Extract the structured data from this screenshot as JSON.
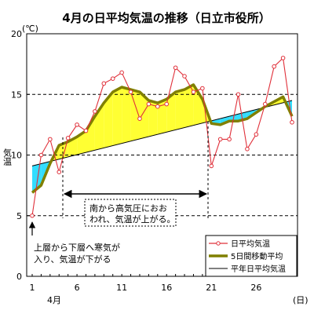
{
  "chart_data": {
    "type": "line",
    "title": "4月の日平均気温の推移（日立市役所）",
    "unit": "(℃)",
    "ylabel": "気温",
    "xlabel": "(日)",
    "month_label": "4月",
    "ylim": [
      0,
      20
    ],
    "yticks": [
      0,
      5,
      10,
      15,
      20
    ],
    "xlim": [
      1,
      30
    ],
    "xticks": [
      1,
      6,
      11,
      16,
      21,
      26
    ],
    "grid": "horizontal-dashed",
    "legend_position": "bottom-right",
    "colors": {
      "daily": "#e0303a",
      "moving": "#808000",
      "normal": "#000000",
      "above": "#ffff33",
      "below": "#33ddff"
    },
    "series": [
      {
        "name": "日平均気温",
        "x": [
          1,
          2,
          3,
          4,
          5,
          6,
          7,
          8,
          9,
          10,
          11,
          12,
          13,
          14,
          15,
          16,
          17,
          18,
          19,
          20,
          21,
          22,
          23,
          24,
          25,
          26,
          27,
          28,
          29,
          30
        ],
        "values": [
          5.0,
          10.0,
          11.3,
          8.6,
          11.4,
          12.5,
          12.0,
          13.6,
          15.9,
          16.3,
          16.8,
          15.2,
          13.0,
          14.2,
          14.0,
          14.2,
          17.2,
          16.5,
          15.2,
          15.5,
          9.1,
          11.3,
          11.3,
          15.0,
          10.5,
          11.7,
          14.2,
          17.3,
          18.0,
          12.7
        ]
      },
      {
        "name": "5日間移動平均",
        "x": [
          1,
          2,
          3,
          4,
          5,
          6,
          7,
          8,
          9,
          10,
          11,
          12,
          13,
          14,
          15,
          16,
          17,
          18,
          19,
          20,
          21,
          22,
          23,
          24,
          25,
          26,
          27,
          28,
          29,
          30
        ],
        "values": [
          6.9,
          7.5,
          9.3,
          10.8,
          11.1,
          11.5,
          12.0,
          13.2,
          14.3,
          15.2,
          15.6,
          15.4,
          15.2,
          14.5,
          14.3,
          14.6,
          15.2,
          15.4,
          15.8,
          14.6,
          12.6,
          12.5,
          12.8,
          12.8,
          13.0,
          13.5,
          14.0,
          14.4,
          14.8,
          13.2
        ]
      },
      {
        "name": "平年日平均気温",
        "x": [
          1,
          30
        ],
        "values": [
          9.1,
          14.5
        ]
      }
    ],
    "annotations": [
      {
        "text": [
          "南から高気圧におお",
          "われ、気温が上がる。"
        ],
        "x_range": [
          4,
          20
        ]
      },
      {
        "text": [
          "上層から下層へ寒気が",
          "入り、気温が下がる"
        ],
        "x": 1
      }
    ]
  }
}
